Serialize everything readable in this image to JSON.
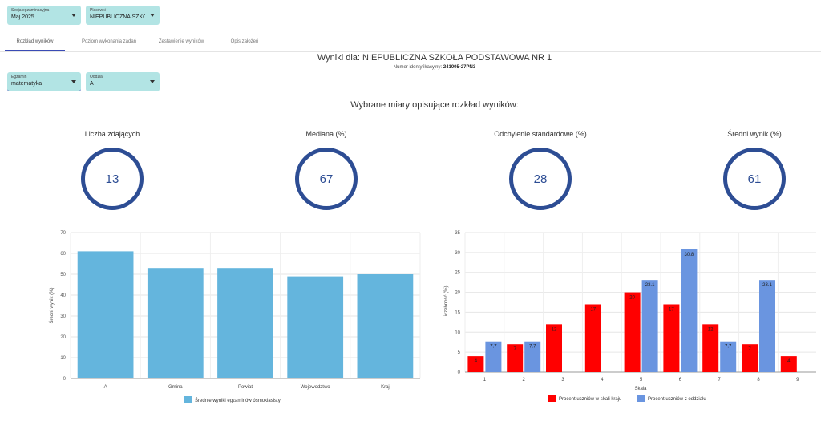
{
  "filters": {
    "session": {
      "label": "Sesja egzaminacyjna",
      "value": "Maj 2025"
    },
    "school": {
      "label": "Placówki",
      "value": "NIEPUBLICZNA SZKOŁA..."
    },
    "exam": {
      "label": "Egzamin",
      "value": "matematyka"
    },
    "class": {
      "label": "Oddział",
      "value": "A"
    }
  },
  "tabs": [
    "Rozkład wyników",
    "Poziom wykonania zadań",
    "Zestawienie wyników",
    "Opis założeń"
  ],
  "active_tab": 0,
  "header": {
    "title": "Wyniki dla: NIEPUBLICZNA SZKOŁA PODSTAWOWA NR 1",
    "id_label": "Numer identyfikacyjny:",
    "id_value": "241005-27PN3"
  },
  "section_title": "Wybrane miary opisujące rozkład wyników:",
  "metrics": [
    {
      "label": "Liczba zdających",
      "value": "13"
    },
    {
      "label": "Mediana (%)",
      "value": "67"
    },
    {
      "label": "Odchylenie standardowe (%)",
      "value": "28"
    },
    {
      "label": "Średni wynik (%)",
      "value": "61"
    }
  ],
  "colors": {
    "teal": "#b2e4e4",
    "accent": "#3a4bb5",
    "circle": "#2d4d94",
    "bar_light_blue": "#64b5dd",
    "bar_red": "#ff0000",
    "bar_blue": "#6a95e0"
  },
  "chart_data": [
    {
      "type": "bar",
      "categories": [
        "A",
        "Gmina",
        "Powiat",
        "Wojewodztwo",
        "Kraj"
      ],
      "series": [
        {
          "name": "Średnie wyniki egzaminów ósmoklasisty",
          "values": [
            61,
            53,
            53,
            49,
            50
          ]
        }
      ],
      "ylabel": "Średni wynik (%)",
      "ylim": [
        0,
        70
      ],
      "yticks": [
        0,
        10,
        20,
        30,
        40,
        50,
        60,
        70
      ],
      "grid": true,
      "legend": "bottom"
    },
    {
      "type": "bar",
      "categories": [
        "1",
        "2",
        "3",
        "4",
        "5",
        "6",
        "7",
        "8",
        "9"
      ],
      "series": [
        {
          "name": "Procent uczniów w skali kraju",
          "values": [
            4,
            7,
            12,
            17,
            20,
            17,
            12,
            7,
            4
          ]
        },
        {
          "name": "Procent uczniów z oddziału",
          "values": [
            7.7,
            7.7,
            0,
            0,
            23.1,
            30.8,
            7.7,
            23.1,
            0
          ]
        }
      ],
      "xlabel": "Skala",
      "ylabel": "Liczebność (%)",
      "ylim": [
        0,
        35
      ],
      "yticks": [
        0,
        5,
        10,
        15,
        20,
        25,
        30,
        35
      ],
      "grid": true,
      "legend": "bottom"
    }
  ]
}
